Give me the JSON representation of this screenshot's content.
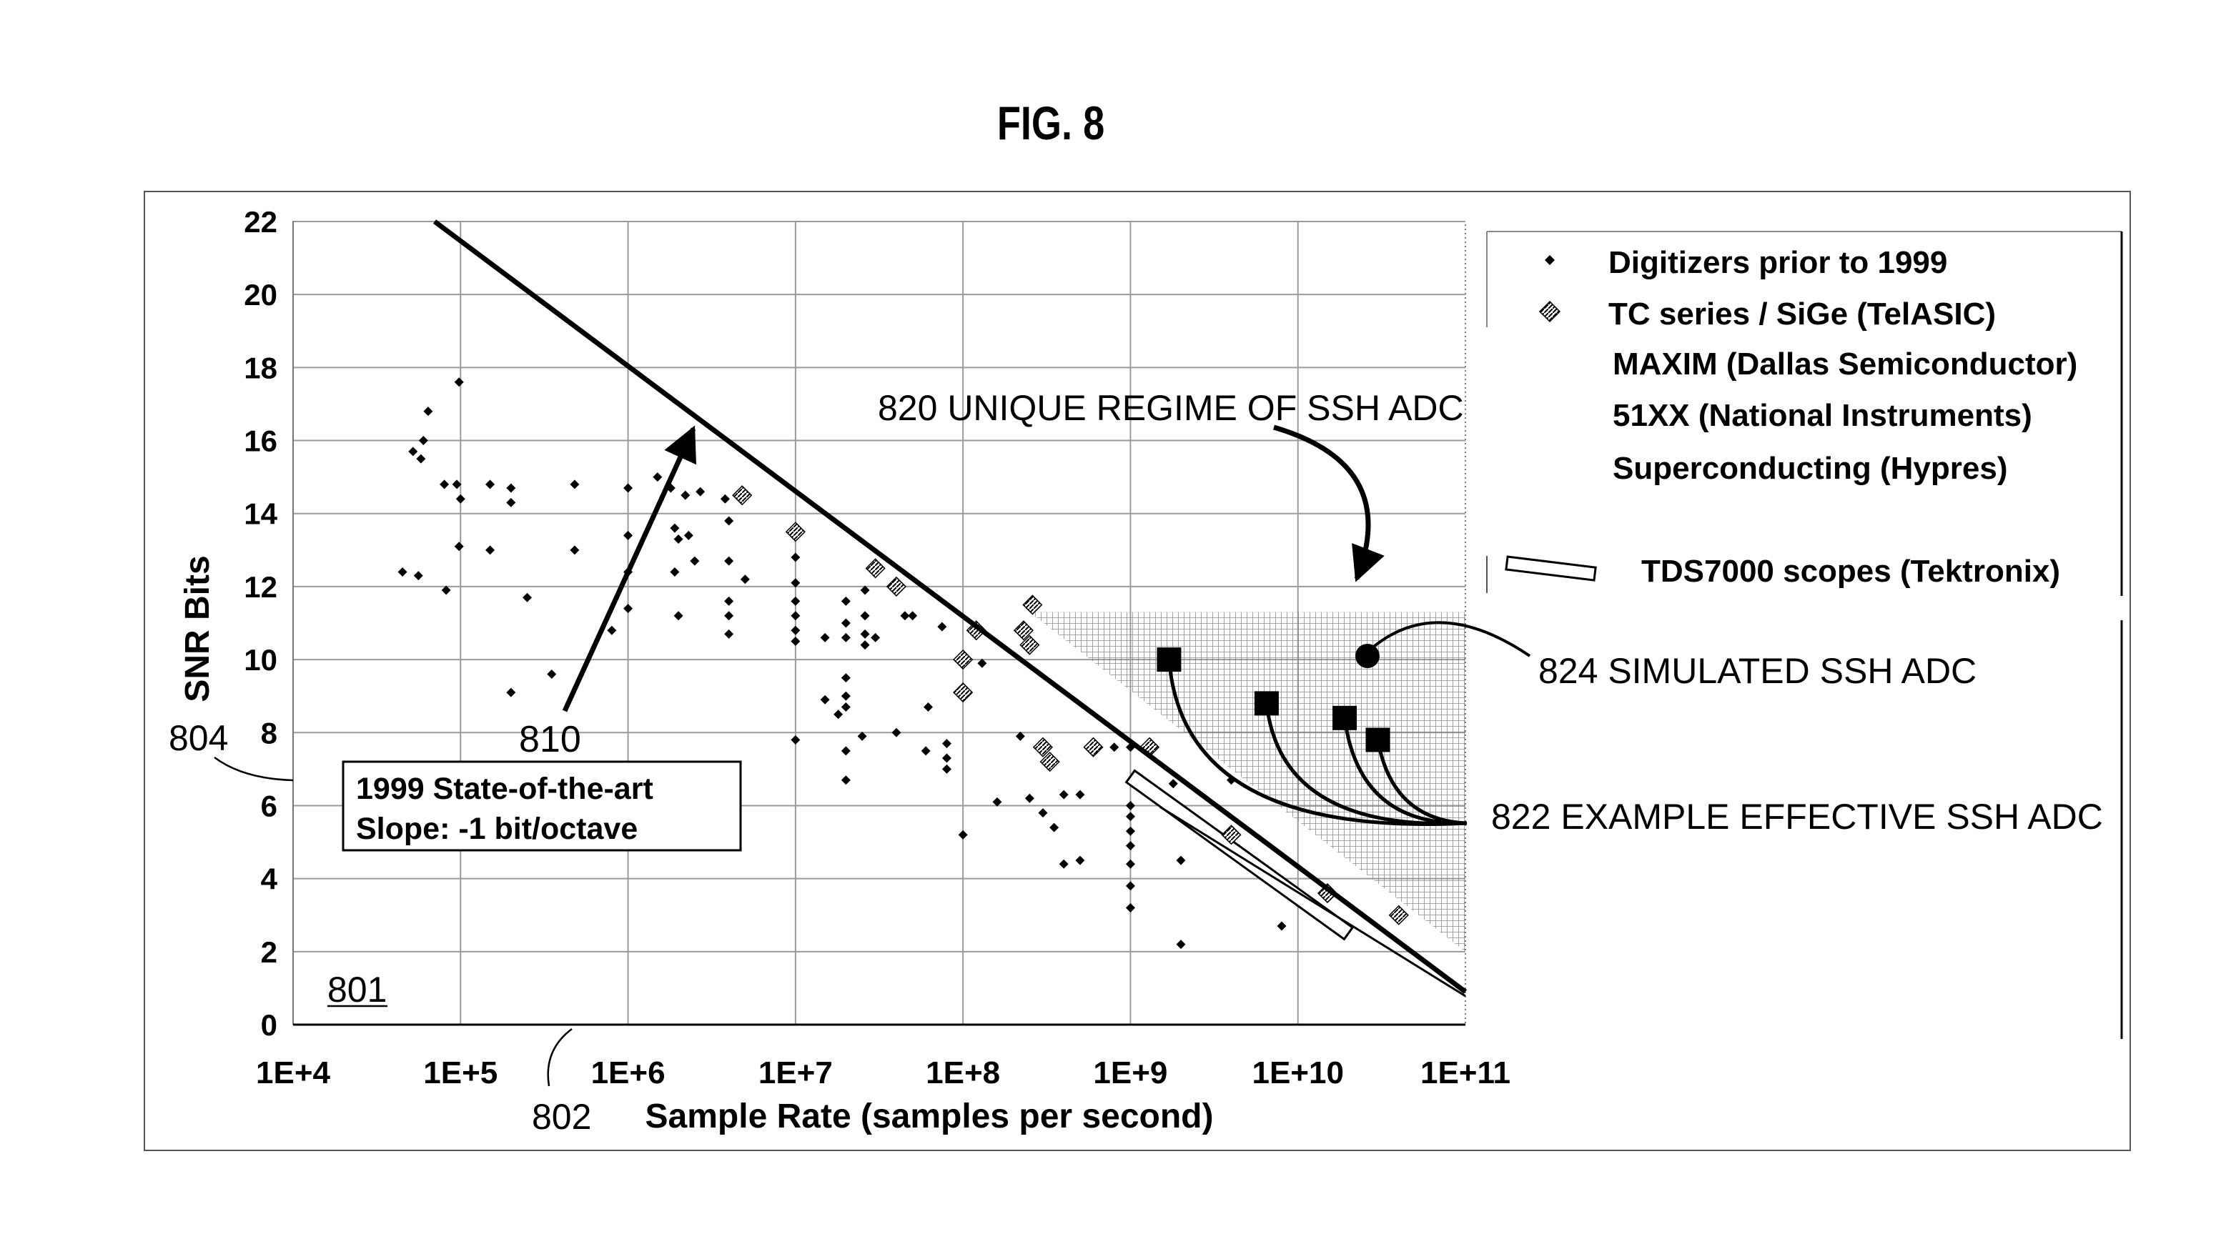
{
  "figure_title": "FIG. 8",
  "labels": {
    "ref_801": "801",
    "ref_802": "802",
    "ref_804": "804",
    "ref_810": "810",
    "ann_820": "820 UNIQUE REGIME OF SSH ADC",
    "ann_822": "822 EXAMPLE EFFECTIVE SSH ADC",
    "ann_824": "824 SIMULATED SSH ADC",
    "state_box_line1": "1999 State-of-the-art",
    "state_box_line2": "Slope:   -1 bit/octave"
  },
  "colors": {
    "ink": "#000000",
    "paper": "#ffffff",
    "grid": "#9a9a9a",
    "hatch": "#808080"
  },
  "chart_data": {
    "type": "scatter",
    "x_scale": "log",
    "xlabel": "Sample Rate (samples per second)",
    "ylabel": "SNR Bits",
    "xlim": [
      10000,
      100000000000
    ],
    "ylim": [
      0,
      22
    ],
    "x_ticks": [
      "1E+4",
      "1E+5",
      "1E+6",
      "1E+7",
      "1E+8",
      "1E+9",
      "1E+10",
      "1E+11"
    ],
    "y_ticks": [
      "0",
      "2",
      "4",
      "6",
      "8",
      "10",
      "12",
      "14",
      "16",
      "18",
      "20",
      "22"
    ],
    "grid": true,
    "legend_position": "right",
    "legend": [
      {
        "label": "Digitizers prior to 1999",
        "marker": "small-diamond"
      },
      {
        "label": "TC series / SiGe (TelASIC)",
        "marker": "hatched-diamond"
      },
      {
        "label": "MAXIM (Dallas Semiconductor)",
        "marker": "none"
      },
      {
        "label": "51XX  (National Instruments)",
        "marker": "none"
      },
      {
        "label": "Superconducting (Hypres)",
        "marker": "none"
      },
      {
        "label": "TDS7000 scopes (Tektronix)",
        "marker": "bar"
      }
    ],
    "state_of_art_line": {
      "x": [
        70000,
        100000000000
      ],
      "y": [
        22,
        0.9
      ]
    },
    "unique_regime": [
      [
        250000000,
        11.3
      ],
      [
        100000000000,
        11.3
      ],
      [
        100000000000,
        2.0
      ]
    ],
    "tds7000_band": {
      "x": [
        1000000000,
        20000000000
      ],
      "y": [
        6.8,
        2.5
      ]
    },
    "series": [
      {
        "name": "Digitizers prior to 1999",
        "points": [
          [
            45000,
            12.4
          ],
          [
            56000,
            12.3
          ],
          [
            64000,
            16.8
          ],
          [
            60000,
            16
          ],
          [
            52000,
            15.7
          ],
          [
            58000,
            15.5
          ],
          [
            98000,
            17.6
          ],
          [
            95000,
            14.8
          ],
          [
            100000,
            14.4
          ],
          [
            98000,
            13.1
          ],
          [
            80000,
            14.8
          ],
          [
            82000,
            11.9
          ],
          [
            150000,
            14.8
          ],
          [
            200000,
            14.7
          ],
          [
            200000,
            14.3
          ],
          [
            150000,
            13
          ],
          [
            200000,
            9.1
          ],
          [
            250000,
            11.7
          ],
          [
            350000,
            9.6
          ],
          [
            480000,
            14.8
          ],
          [
            480000,
            13
          ],
          [
            800000,
            10.8
          ],
          [
            1000000,
            14.7
          ],
          [
            1000000,
            13.4
          ],
          [
            1000000,
            12.4
          ],
          [
            1000000,
            11.4
          ],
          [
            1500000,
            15
          ],
          [
            1800000,
            14.7
          ],
          [
            2200000,
            14.5
          ],
          [
            2700000,
            14.6
          ],
          [
            1900000,
            13.6
          ],
          [
            2000000,
            13.3
          ],
          [
            2300000,
            13.4
          ],
          [
            1900000,
            12.4
          ],
          [
            2000000,
            11.2
          ],
          [
            2500000,
            12.7
          ],
          [
            3800000,
            14.4
          ],
          [
            4000000,
            13.8
          ],
          [
            4000000,
            12.7
          ],
          [
            4000000,
            11.6
          ],
          [
            4000000,
            11.2
          ],
          [
            4000000,
            10.7
          ],
          [
            5000000,
            12.2
          ],
          [
            10000000,
            12.8
          ],
          [
            10000000,
            12.1
          ],
          [
            10000000,
            11.6
          ],
          [
            10000000,
            11.2
          ],
          [
            10000000,
            10.8
          ],
          [
            10000000,
            10.5
          ],
          [
            10000000,
            7.8
          ],
          [
            15000000,
            10.6
          ],
          [
            15000000,
            8.9
          ],
          [
            18000000,
            8.5
          ],
          [
            20000000,
            11.6
          ],
          [
            20000000,
            11
          ],
          [
            20000000,
            10.6
          ],
          [
            20000000,
            9.5
          ],
          [
            20000000,
            9
          ],
          [
            20000000,
            8.7
          ],
          [
            20000000,
            7.5
          ],
          [
            20000000,
            6.7
          ],
          [
            25000000,
            7.9
          ],
          [
            26000000,
            11.9
          ],
          [
            26000000,
            11.2
          ],
          [
            26000000,
            10.7
          ],
          [
            26000000,
            10.4
          ],
          [
            30000000,
            10.6
          ],
          [
            40000000,
            8
          ],
          [
            45000000,
            11.2
          ],
          [
            50000000,
            11.2
          ],
          [
            60000000,
            7.5
          ],
          [
            62000000,
            8.7
          ],
          [
            75000000,
            10.9
          ],
          [
            80000000,
            7.7
          ],
          [
            80000000,
            7.3
          ],
          [
            80000000,
            7
          ],
          [
            100000000,
            5.2
          ],
          [
            130000000,
            9.9
          ],
          [
            160000000,
            6.1
          ],
          [
            220000000,
            7.9
          ],
          [
            250000000,
            6.2
          ],
          [
            300000000,
            5.8
          ],
          [
            350000000,
            5.4
          ],
          [
            400000000,
            4.4
          ],
          [
            400000000,
            6.3
          ],
          [
            500000000,
            4.5
          ],
          [
            500000000,
            6.3
          ],
          [
            800000000,
            7.6
          ],
          [
            1000000000,
            7.6
          ],
          [
            1000000000,
            6
          ],
          [
            1000000000,
            5.7
          ],
          [
            1000000000,
            5.3
          ],
          [
            1000000000,
            4.9
          ],
          [
            1000000000,
            4.4
          ],
          [
            1000000000,
            3.8
          ],
          [
            1000000000,
            3.2
          ],
          [
            1800000000,
            6.6
          ],
          [
            2000000000,
            4.5
          ],
          [
            2000000000,
            2.2
          ],
          [
            4000000000,
            6.7
          ],
          [
            8000000000,
            2.7
          ]
        ]
      },
      {
        "name": "TC series / SiGe (TelASIC)",
        "points": [
          [
            4800000,
            14.5
          ],
          [
            10000000,
            13.5
          ],
          [
            30000000,
            12.5
          ],
          [
            40000000,
            12
          ],
          [
            100000000,
            10
          ],
          [
            100000000,
            9.1
          ],
          [
            120000000,
            10.8
          ],
          [
            230000000,
            10.8
          ],
          [
            250000000,
            10.4
          ],
          [
            260000000,
            11.5
          ],
          [
            300000000,
            7.6
          ],
          [
            330000000,
            7.2
          ],
          [
            600000000,
            7.6
          ],
          [
            1300000000,
            7.6
          ],
          [
            4000000000,
            5.2
          ],
          [
            15000000000,
            3.6
          ],
          [
            40000000000,
            3
          ]
        ]
      },
      {
        "name": "822 EXAMPLE EFFECTIVE SSH ADC",
        "points": [
          [
            1700000000,
            10
          ],
          [
            6500000000,
            8.8
          ],
          [
            19000000000,
            8.4
          ],
          [
            30000000000,
            7.8
          ]
        ]
      },
      {
        "name": "824 SIMULATED SSH ADC",
        "points": [
          [
            26000000000,
            10.1
          ]
        ]
      }
    ]
  }
}
